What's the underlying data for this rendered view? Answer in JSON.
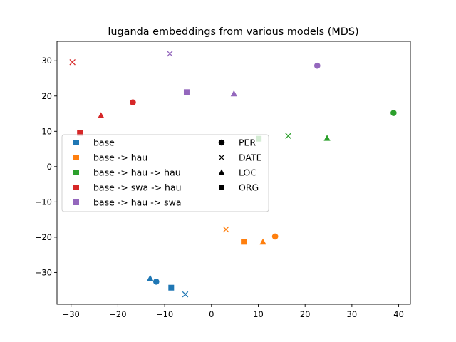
{
  "chart_data": {
    "type": "scatter",
    "title": "luganda embeddings from various models (MDS)",
    "xlabel": "",
    "ylabel": "",
    "xlim": [
      -33,
      42.5
    ],
    "ylim": [
      -39,
      35.5
    ],
    "xticks": [
      -30,
      -20,
      -10,
      0,
      10,
      20,
      30,
      40
    ],
    "yticks": [
      -30,
      -20,
      -10,
      0,
      10,
      20,
      30
    ],
    "xtick_labels": [
      "−30",
      "−20",
      "−10",
      "0",
      "10",
      "20",
      "30",
      "40"
    ],
    "ytick_labels": [
      "−30",
      "−20",
      "−10",
      "0",
      "10",
      "20",
      "30"
    ],
    "grid": false,
    "legend_placement": "center-left",
    "series": [
      {
        "name": "base",
        "color": "#1f77b4",
        "points": [
          {
            "label": "PER",
            "x": -11.8,
            "y": -32.6
          },
          {
            "label": "DATE",
            "x": -5.6,
            "y": -36.2
          },
          {
            "label": "LOC",
            "x": -13.1,
            "y": -31.6
          },
          {
            "label": "ORG",
            "x": -8.6,
            "y": -34.3
          }
        ]
      },
      {
        "name": "base -> hau",
        "color": "#ff7f0e",
        "points": [
          {
            "label": "PER",
            "x": 13.6,
            "y": -19.8
          },
          {
            "label": "DATE",
            "x": 3.1,
            "y": -17.8
          },
          {
            "label": "LOC",
            "x": 11.0,
            "y": -21.3
          },
          {
            "label": "ORG",
            "x": 6.9,
            "y": -21.3
          }
        ]
      },
      {
        "name": "base -> hau -> hau",
        "color": "#2ca02c",
        "points": [
          {
            "label": "PER",
            "x": 38.9,
            "y": 15.2
          },
          {
            "label": "DATE",
            "x": 16.4,
            "y": 8.7
          },
          {
            "label": "LOC",
            "x": 24.7,
            "y": 8.1
          },
          {
            "label": "ORG",
            "x": 10.1,
            "y": 7.9
          }
        ]
      },
      {
        "name": "base -> swa -> hau",
        "color": "#d62728",
        "points": [
          {
            "label": "PER",
            "x": -16.8,
            "y": 18.2
          },
          {
            "label": "DATE",
            "x": -29.7,
            "y": 29.6
          },
          {
            "label": "LOC",
            "x": -23.6,
            "y": 14.5
          },
          {
            "label": "ORG",
            "x": -28.1,
            "y": 9.5
          }
        ]
      },
      {
        "name": "base -> hau -> swa",
        "color": "#9467bd",
        "points": [
          {
            "label": "PER",
            "x": 22.6,
            "y": 28.6
          },
          {
            "label": "DATE",
            "x": -8.9,
            "y": 32.0
          },
          {
            "label": "LOC",
            "x": 4.8,
            "y": 20.7
          },
          {
            "label": "ORG",
            "x": -5.3,
            "y": 21.1
          }
        ]
      }
    ],
    "marker_legend": [
      {
        "label": "PER",
        "marker": "circle"
      },
      {
        "label": "DATE",
        "marker": "x"
      },
      {
        "label": "LOC",
        "marker": "triangle"
      },
      {
        "label": "ORG",
        "marker": "square"
      }
    ]
  }
}
